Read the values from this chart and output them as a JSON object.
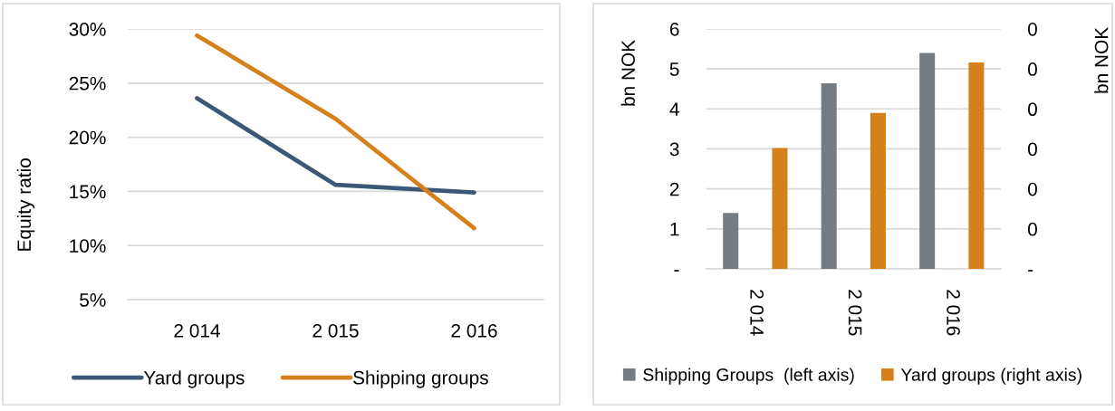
{
  "chart_data": [
    {
      "type": "line",
      "categories": [
        "2 014",
        "2 015",
        "2 016"
      ],
      "ylabel": "Equity ratio",
      "ylim": [
        5,
        30
      ],
      "yticks": [
        {
          "value": 5,
          "label": "5%"
        },
        {
          "value": 10,
          "label": "10%"
        },
        {
          "value": 15,
          "label": "15%"
        },
        {
          "value": 20,
          "label": "20%"
        },
        {
          "value": 25,
          "label": "25%"
        },
        {
          "value": 30,
          "label": "30%"
        }
      ],
      "grid": "y",
      "legend": "bottom",
      "line_style": "solid",
      "series": [
        {
          "name": "Yard groups",
          "color": "#3b5878",
          "values": [
            23.6,
            15.6,
            14.9
          ]
        },
        {
          "name": "Shipping groups",
          "color": "#d6801b",
          "values": [
            29.4,
            21.7,
            11.6
          ]
        }
      ]
    },
    {
      "type": "bar",
      "categories": [
        "2 014",
        "2 015",
        "2 016"
      ],
      "ylabel": "bn NOK",
      "y2label": "bn NOK",
      "ylim": [
        0,
        6
      ],
      "yticks": [
        {
          "value": 0,
          "label": "-"
        },
        1,
        2,
        3,
        4,
        5,
        6
      ],
      "y2lim": [
        0,
        0.3
      ],
      "y2ticks": [
        {
          "value": 0,
          "label": "-"
        },
        {
          "value": 0.05,
          "label": "0"
        },
        {
          "value": 0.1,
          "label": "0"
        },
        {
          "value": 0.15,
          "label": "0"
        },
        {
          "value": 0.2,
          "label": "0"
        },
        {
          "value": 0.25,
          "label": "0"
        },
        {
          "value": 0.3,
          "label": "0"
        }
      ],
      "grid": "y",
      "legend": "bottom",
      "series": [
        {
          "name": "Shipping Groups  (left axis)",
          "color": "#747b83",
          "values": [
            1.4,
            4.64,
            5.4
          ]
        },
        {
          "name": "Yard groups (right axis)",
          "color": "#d6801b",
          "values": [
            0.151,
            0.195,
            0.258
          ],
          "axis": "y2"
        }
      ]
    }
  ]
}
